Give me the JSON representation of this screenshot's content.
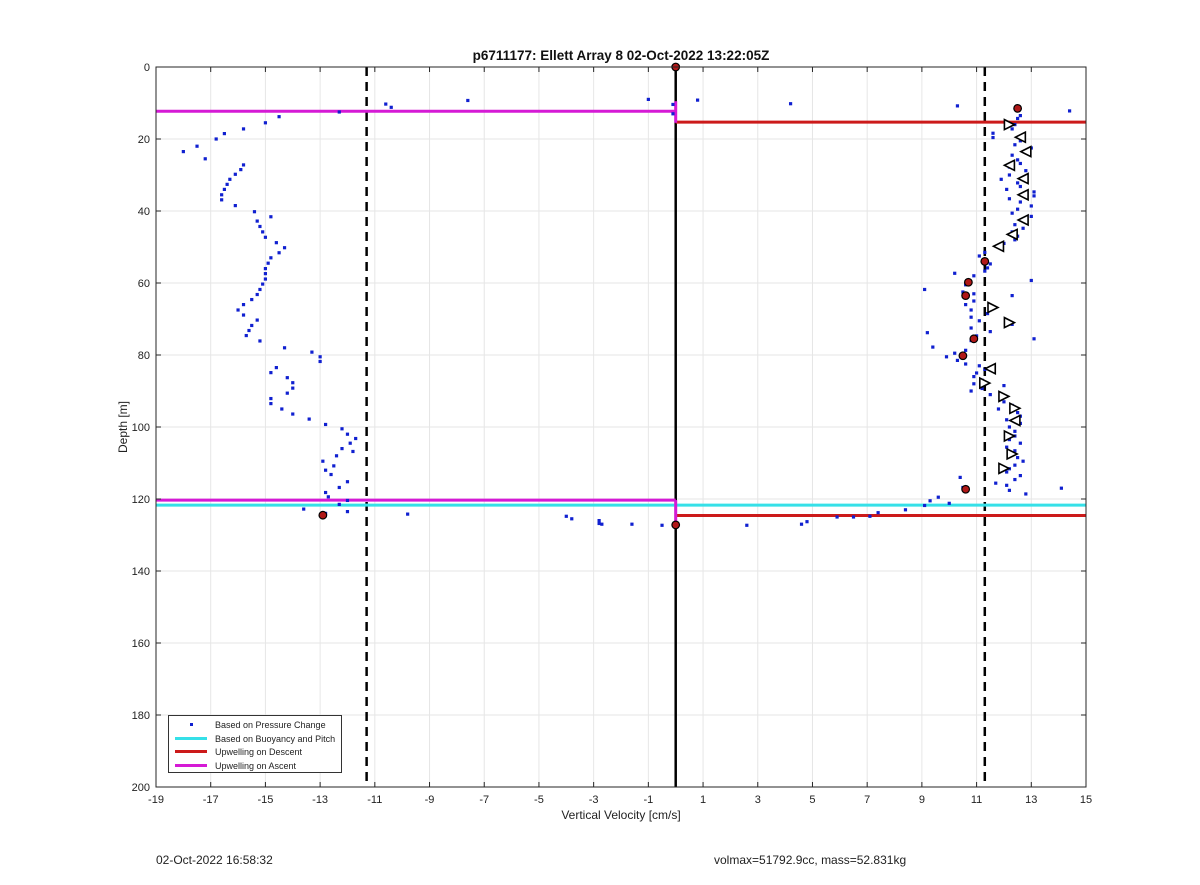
{
  "chart_data": {
    "type": "scatter",
    "title": "p6711177: Ellett Array 8 02-Oct-2022 13:22:05Z",
    "xlabel": "Vertical Velocity [cm/s]",
    "ylabel": "Depth [m]",
    "xlim": [
      -19,
      15
    ],
    "ylim": [
      200,
      0
    ],
    "y_reversed": true,
    "grid": true,
    "x_ticks": [
      -19,
      -17,
      -15,
      -13,
      -11,
      -9,
      -7,
      -5,
      -3,
      -1,
      1,
      3,
      5,
      7,
      9,
      11,
      13,
      15
    ],
    "y_ticks": [
      0,
      20,
      40,
      60,
      80,
      100,
      120,
      140,
      160,
      180,
      200
    ],
    "legend_position": "bottom-left",
    "legend": [
      {
        "label": "Based on Pressure Change",
        "color": "#1020d0",
        "style": "dot"
      },
      {
        "label": "Based on Buoyancy and Pitch",
        "color": "#35e0e8",
        "style": "line"
      },
      {
        "label": "Upwelling on Descent",
        "color": "#cc1a1a",
        "style": "line"
      },
      {
        "label": "Upwelling on Ascent",
        "color": "#d51ad5",
        "style": "line"
      }
    ],
    "series": [
      {
        "name": "Based on Pressure Change",
        "color": "#1020d0",
        "points": [
          [
            -12.3,
            12.5
          ],
          [
            -14.5,
            13.8
          ],
          [
            -15,
            15.5
          ],
          [
            -15.8,
            17.2
          ],
          [
            -16.5,
            18.5
          ],
          [
            -16.8,
            20
          ],
          [
            -17.5,
            22
          ],
          [
            -18,
            23.5
          ],
          [
            -17.2,
            25.5
          ],
          [
            -15.8,
            27.2
          ],
          [
            -15.9,
            28.5
          ],
          [
            -16.1,
            29.8
          ],
          [
            -16.3,
            31.2
          ],
          [
            -16.4,
            32.6
          ],
          [
            -16.5,
            34
          ],
          [
            -16.6,
            35.5
          ],
          [
            -16.6,
            36.9
          ],
          [
            -16.1,
            38.5
          ],
          [
            -15.4,
            40.2
          ],
          [
            -14.8,
            41.6
          ],
          [
            -15.3,
            42.8
          ],
          [
            -15.2,
            44.3
          ],
          [
            -15.1,
            45.8
          ],
          [
            -15,
            47.3
          ],
          [
            -14.6,
            48.8
          ],
          [
            -14.3,
            50.2
          ],
          [
            -14.5,
            51.6
          ],
          [
            -14.8,
            53
          ],
          [
            -14.9,
            54.5
          ],
          [
            -15,
            56
          ],
          [
            -15,
            57.4
          ],
          [
            -15,
            58.9
          ],
          [
            -15.1,
            60.3
          ],
          [
            -15.2,
            61.8
          ],
          [
            -15.3,
            63.2
          ],
          [
            -15.5,
            64.6
          ],
          [
            -15.8,
            66
          ],
          [
            -16,
            67.5
          ],
          [
            -15.8,
            68.9
          ],
          [
            -15.3,
            70.3
          ],
          [
            -15.5,
            71.8
          ],
          [
            -15.6,
            73.2
          ],
          [
            -15.7,
            74.6
          ],
          [
            -15.2,
            76.1
          ],
          [
            -14.3,
            78
          ],
          [
            -13.3,
            79.2
          ],
          [
            -13,
            80.5
          ],
          [
            -13,
            81.8
          ],
          [
            -14.6,
            83.5
          ],
          [
            -14.8,
            84.9
          ],
          [
            -14.2,
            86.3
          ],
          [
            -14,
            87.7
          ],
          [
            -14,
            89.2
          ],
          [
            -14.2,
            90.6
          ],
          [
            -14.8,
            92.1
          ],
          [
            -14.8,
            93.5
          ],
          [
            -14.4,
            95
          ],
          [
            -14,
            96.4
          ],
          [
            -13.4,
            97.8
          ],
          [
            -12.8,
            99.3
          ],
          [
            -12.2,
            100.5
          ],
          [
            -12,
            102
          ],
          [
            -11.7,
            103.2
          ],
          [
            -11.9,
            104.5
          ],
          [
            -12.2,
            106
          ],
          [
            -11.8,
            106.8
          ],
          [
            -12.4,
            108
          ],
          [
            -12.9,
            109.5
          ],
          [
            -12.5,
            110.8
          ],
          [
            -12.8,
            112
          ],
          [
            -12.6,
            113.2
          ],
          [
            -12,
            115.2
          ],
          [
            -12.3,
            116.8
          ],
          [
            -12.8,
            118.2
          ],
          [
            -12.7,
            119.4
          ],
          [
            -12,
            120.4
          ],
          [
            -12.3,
            121.5
          ],
          [
            -13.6,
            122.8
          ],
          [
            -12.8,
            124
          ],
          [
            -10.6,
            10.3
          ],
          [
            -10.4,
            11.2
          ],
          [
            -7.6,
            9.3
          ],
          [
            -1,
            9
          ],
          [
            -0.1,
            10.4
          ],
          [
            0.8,
            9.2
          ],
          [
            -0.1,
            13
          ],
          [
            4.2,
            10.2
          ],
          [
            10.3,
            10.8
          ],
          [
            14.4,
            12.2
          ],
          [
            12.5,
            12
          ],
          [
            12.6,
            13.5
          ],
          [
            12.5,
            14.3
          ],
          [
            12.4,
            16
          ],
          [
            12.3,
            17.2
          ],
          [
            11.6,
            18.4
          ],
          [
            11.6,
            19.6
          ],
          [
            12.6,
            20.5
          ],
          [
            12.4,
            21.6
          ],
          [
            13,
            22.5
          ],
          [
            12.9,
            23.6
          ],
          [
            12.3,
            24.5
          ],
          [
            12.5,
            25.8
          ],
          [
            12.6,
            26.8
          ],
          [
            12.2,
            27.8
          ],
          [
            12.8,
            28.8
          ],
          [
            12.2,
            30
          ],
          [
            11.9,
            31.2
          ],
          [
            12.5,
            32.2
          ],
          [
            12.6,
            33.2
          ],
          [
            12.1,
            34
          ],
          [
            13.1,
            34.7
          ],
          [
            13.1,
            35.8
          ],
          [
            12.2,
            36.6
          ],
          [
            12.6,
            37.5
          ],
          [
            13,
            38.6
          ],
          [
            12.5,
            39.5
          ],
          [
            12.3,
            40.6
          ],
          [
            13,
            41.5
          ],
          [
            12.8,
            42.8
          ],
          [
            12.4,
            43.8
          ],
          [
            12.7,
            44.8
          ],
          [
            12.3,
            45.8
          ],
          [
            12.5,
            47
          ],
          [
            12.4,
            48
          ],
          [
            12,
            49
          ],
          [
            11.9,
            50.2
          ],
          [
            11.3,
            51.5
          ],
          [
            11.1,
            52.5
          ],
          [
            11.3,
            53.5
          ],
          [
            11.5,
            54.7
          ],
          [
            11.4,
            55.8
          ],
          [
            11.3,
            56.7
          ],
          [
            10.9,
            58
          ],
          [
            10.2,
            57.3
          ],
          [
            9.1,
            61.8
          ],
          [
            10.6,
            60.5
          ],
          [
            13,
            59.3
          ],
          [
            12.3,
            63.5
          ],
          [
            10.5,
            62.5
          ],
          [
            10.9,
            63
          ],
          [
            10.9,
            65
          ],
          [
            10.6,
            66
          ],
          [
            10.8,
            67.5
          ],
          [
            11.4,
            68.5
          ],
          [
            10.8,
            69.5
          ],
          [
            11.1,
            70.5
          ],
          [
            12.3,
            71.5
          ],
          [
            10.8,
            72.5
          ],
          [
            11.5,
            73.5
          ],
          [
            9.2,
            73.8
          ],
          [
            11,
            74.7
          ],
          [
            10.8,
            76
          ],
          [
            13.1,
            75.5
          ],
          [
            9.4,
            77.8
          ],
          [
            10.6,
            78.7
          ],
          [
            10.2,
            79.5
          ],
          [
            9.9,
            80.5
          ],
          [
            10.3,
            81.5
          ],
          [
            10.6,
            82.5
          ],
          [
            11.1,
            83
          ],
          [
            11.3,
            84
          ],
          [
            11,
            85
          ],
          [
            10.9,
            86
          ],
          [
            11.2,
            87
          ],
          [
            10.9,
            88
          ],
          [
            12,
            88.5
          ],
          [
            11.2,
            89.3
          ],
          [
            10.8,
            90
          ],
          [
            11.5,
            91
          ],
          [
            11.9,
            92
          ],
          [
            12,
            93
          ],
          [
            12.3,
            94
          ],
          [
            11.8,
            95
          ],
          [
            12.5,
            96
          ],
          [
            12.6,
            97
          ],
          [
            12.1,
            98
          ],
          [
            12.6,
            99
          ],
          [
            12.2,
            100
          ],
          [
            12.4,
            101.2
          ],
          [
            12.4,
            102.5
          ],
          [
            12.2,
            103.5
          ],
          [
            12.6,
            104.5
          ],
          [
            12.1,
            105.6
          ],
          [
            12.4,
            106.6
          ],
          [
            12.3,
            107.5
          ],
          [
            12.5,
            108.5
          ],
          [
            12.7,
            109.5
          ],
          [
            12.4,
            110.6
          ],
          [
            12.2,
            111.6
          ],
          [
            12.1,
            112.5
          ],
          [
            12.6,
            113.5
          ],
          [
            10.4,
            114
          ],
          [
            12.4,
            114.6
          ],
          [
            11.7,
            115.6
          ],
          [
            12.1,
            116.2
          ],
          [
            10.5,
            116.8
          ],
          [
            14.1,
            117
          ],
          [
            12.2,
            117.6
          ],
          [
            12.8,
            118.6
          ],
          [
            9.6,
            119.5
          ],
          [
            9.3,
            120.5
          ],
          [
            10,
            121.2
          ],
          [
            9.1,
            121.8
          ],
          [
            8.4,
            123
          ],
          [
            7.4,
            123.8
          ],
          [
            7.1,
            124.8
          ],
          [
            6.5,
            125
          ],
          [
            5.9,
            125
          ],
          [
            4.8,
            126.3
          ],
          [
            4.6,
            127
          ],
          [
            2.6,
            127.3
          ],
          [
            -4,
            124.8
          ],
          [
            -3.8,
            125.5
          ],
          [
            -2.8,
            126
          ],
          [
            -2.8,
            126.8
          ],
          [
            -1.6,
            127
          ],
          [
            -0.5,
            127.3
          ],
          [
            -2.7,
            127
          ],
          [
            -9.8,
            124.2
          ],
          [
            -12,
            123.5
          ]
        ]
      },
      {
        "name": "Upwelling on Descent",
        "color": "#cc1a1a",
        "markers": [
          [
            12.5,
            11.5
          ],
          [
            11.3,
            54
          ],
          [
            10.7,
            59.8
          ],
          [
            10.6,
            63.5
          ],
          [
            10.9,
            75.5
          ],
          [
            10.5,
            80.2
          ],
          [
            10.6,
            117.3
          ],
          [
            -12.9,
            124.5
          ],
          [
            0,
            127.2
          ],
          [
            0,
            0
          ]
        ]
      },
      {
        "name": "Upwelling on Ascent",
        "color": "#000000",
        "triangles": [
          {
            "x": 12.2,
            "y": 16,
            "dir": "right"
          },
          {
            "x": 12.6,
            "y": 19.5,
            "dir": "left"
          },
          {
            "x": 12.8,
            "y": 23.5,
            "dir": "left"
          },
          {
            "x": 12.2,
            "y": 27.3,
            "dir": "left"
          },
          {
            "x": 12.7,
            "y": 31,
            "dir": "left"
          },
          {
            "x": 12.7,
            "y": 35.5,
            "dir": "left"
          },
          {
            "x": 12.7,
            "y": 42.5,
            "dir": "left"
          },
          {
            "x": 12.3,
            "y": 46.5,
            "dir": "left"
          },
          {
            "x": 11.8,
            "y": 49.8,
            "dir": "left"
          },
          {
            "x": 11.6,
            "y": 66.8,
            "dir": "right"
          },
          {
            "x": 12.2,
            "y": 71,
            "dir": "right"
          },
          {
            "x": 11.5,
            "y": 83.8,
            "dir": "left"
          },
          {
            "x": 11.3,
            "y": 87.8,
            "dir": "right"
          },
          {
            "x": 12,
            "y": 91.5,
            "dir": "right"
          },
          {
            "x": 12.4,
            "y": 94.8,
            "dir": "right"
          },
          {
            "x": 12.4,
            "y": 98.2,
            "dir": "left"
          },
          {
            "x": 12.2,
            "y": 102.5,
            "dir": "right"
          },
          {
            "x": 12.3,
            "y": 107.5,
            "dir": "right"
          },
          {
            "x": 12,
            "y": 111.5,
            "dir": "right"
          }
        ]
      }
    ],
    "horizontal_lines": [
      {
        "y": 12.3,
        "x0": -19,
        "x1": 0,
        "color": "#d51ad5",
        "width": 3
      },
      {
        "y": 15.3,
        "x0": 0,
        "x1": 15,
        "color": "#cc1a1a",
        "width": 3
      },
      {
        "y": 120.3,
        "x0": -19,
        "x1": 0,
        "color": "#d51ad5",
        "width": 3
      },
      {
        "y": 121.7,
        "x0": -19,
        "x1": 15,
        "color": "#35e0e8",
        "width": 3
      },
      {
        "y": 124.6,
        "x0": 0,
        "x1": 15,
        "color": "#cc1a1a",
        "width": 3
      }
    ],
    "vertical_lines": [
      {
        "x": -11.3,
        "style": "dashed",
        "color": "#000000"
      },
      {
        "x": 11.3,
        "style": "dashed",
        "color": "#000000"
      },
      {
        "x": 0,
        "style": "solid",
        "color": "#000000"
      }
    ],
    "vertical_segments": [
      {
        "x": 0,
        "y0": 9.5,
        "y1": 15.5,
        "color": "#d51ad5"
      },
      {
        "x": 0,
        "y0": 120.3,
        "y1": 128,
        "color": "#d51ad5"
      }
    ]
  },
  "footer": {
    "timestamp": "02-Oct-2022 16:58:32",
    "info": "volmax=51792.9cc, mass=52.831kg"
  }
}
